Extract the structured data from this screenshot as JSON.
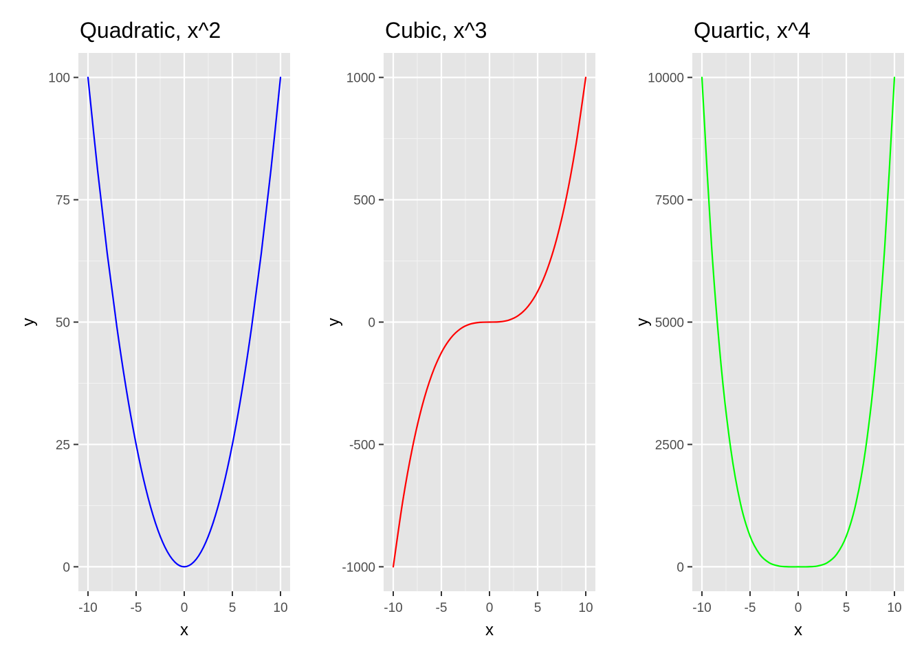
{
  "chart_data": [
    {
      "type": "line",
      "title": "Quadratic, x^2",
      "xlabel": "x",
      "ylabel": "y",
      "xlim": [
        -10,
        10
      ],
      "ylim": [
        0,
        100
      ],
      "x_ticks": [
        -10,
        -5,
        0,
        5,
        10
      ],
      "x_tick_labels": [
        "-10",
        "-5",
        "0",
        "5",
        "10"
      ],
      "y_ticks": [
        0,
        25,
        50,
        75,
        100
      ],
      "y_tick_labels": [
        "0",
        "25",
        "50",
        "75",
        "100"
      ],
      "grid": true,
      "legend": "none",
      "series": [
        {
          "color": "#0000ff",
          "x": [
            -10,
            -9,
            -8,
            -7,
            -6,
            -5,
            -4,
            -3,
            -2,
            -1,
            0,
            1,
            2,
            3,
            4,
            5,
            6,
            7,
            8,
            9,
            10
          ],
          "y": [
            100,
            81,
            64,
            49,
            36,
            25,
            16,
            9,
            4,
            1,
            0,
            1,
            4,
            9,
            16,
            25,
            36,
            49,
            64,
            81,
            100
          ]
        }
      ]
    },
    {
      "type": "line",
      "title": "Cubic, x^3",
      "xlabel": "x",
      "ylabel": "y",
      "xlim": [
        -10,
        10
      ],
      "ylim": [
        -1000,
        1000
      ],
      "x_ticks": [
        -10,
        -5,
        0,
        5,
        10
      ],
      "x_tick_labels": [
        "-10",
        "-5",
        "0",
        "5",
        "10"
      ],
      "y_ticks": [
        -1000,
        -500,
        0,
        500,
        1000
      ],
      "y_tick_labels": [
        "-1000",
        "-500",
        "0",
        "500",
        "1000"
      ],
      "grid": true,
      "legend": "none",
      "series": [
        {
          "color": "#ff0000",
          "x": [
            -10,
            -9,
            -8,
            -7,
            -6,
            -5,
            -4,
            -3,
            -2,
            -1,
            0,
            1,
            2,
            3,
            4,
            5,
            6,
            7,
            8,
            9,
            10
          ],
          "y": [
            -1000,
            -729,
            -512,
            -343,
            -216,
            -125,
            -64,
            -27,
            -8,
            -1,
            0,
            1,
            8,
            27,
            64,
            125,
            216,
            343,
            512,
            729,
            1000
          ]
        }
      ]
    },
    {
      "type": "line",
      "title": "Quartic, x^4",
      "xlabel": "x",
      "ylabel": "y",
      "xlim": [
        -10,
        10
      ],
      "ylim": [
        0,
        10000
      ],
      "x_ticks": [
        -10,
        -5,
        0,
        5,
        10
      ],
      "x_tick_labels": [
        "-10",
        "-5",
        "0",
        "5",
        "10"
      ],
      "y_ticks": [
        0,
        2500,
        5000,
        7500,
        10000
      ],
      "y_tick_labels": [
        "0",
        "2500",
        "5000",
        "7500",
        "10000"
      ],
      "grid": true,
      "legend": "none",
      "series": [
        {
          "color": "#00ff00",
          "x": [
            -10,
            -9,
            -8,
            -7,
            -6,
            -5,
            -4,
            -3,
            -2,
            -1,
            0,
            1,
            2,
            3,
            4,
            5,
            6,
            7,
            8,
            9,
            10
          ],
          "y": [
            10000,
            6561,
            4096,
            2401,
            1296,
            625,
            256,
            81,
            16,
            1,
            0,
            1,
            16,
            81,
            256,
            625,
            1296,
            2401,
            4096,
            6561,
            10000
          ]
        }
      ]
    }
  ]
}
